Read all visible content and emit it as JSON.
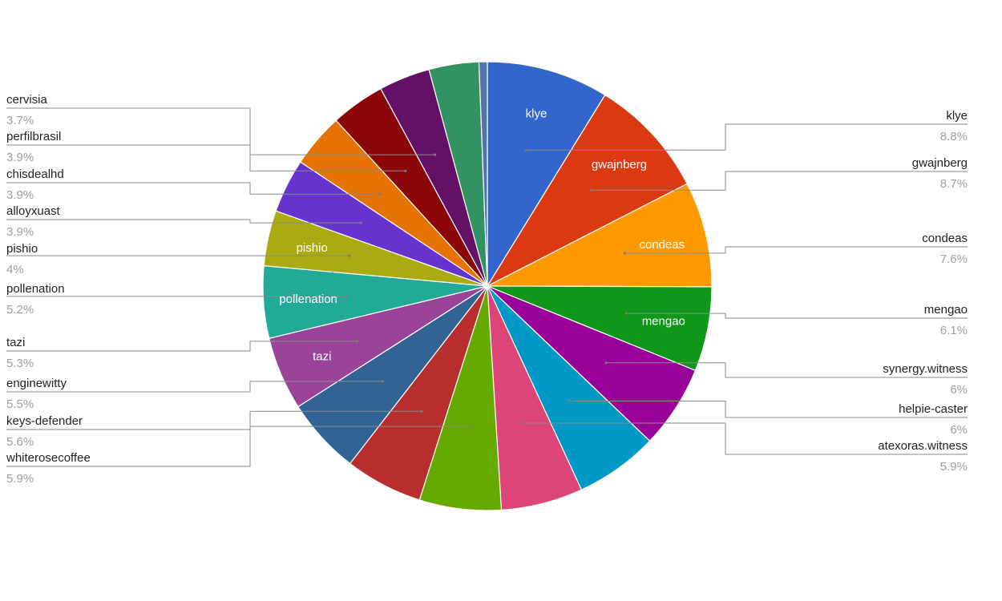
{
  "chart_data": {
    "type": "pie",
    "title": "",
    "start_angle_deg": 0,
    "direction": "clockwise",
    "slices": [
      {
        "label": "klye",
        "value": 8.8,
        "value_label": "8.8%",
        "color": "#3366cc",
        "callout": "right",
        "in_slice_label": true
      },
      {
        "label": "gwajnberg",
        "value": 8.7,
        "value_label": "8.7%",
        "color": "#dc3912",
        "callout": "right",
        "in_slice_label": true
      },
      {
        "label": "condeas",
        "value": 7.6,
        "value_label": "7.6%",
        "color": "#ff9900",
        "callout": "right",
        "in_slice_label": true
      },
      {
        "label": "mengao",
        "value": 6.1,
        "value_label": "6.1%",
        "color": "#109618",
        "callout": "right",
        "in_slice_label": true
      },
      {
        "label": "synergy.witness",
        "value": 6.0,
        "value_label": "6%",
        "color": "#990099",
        "callout": "right",
        "in_slice_label": false
      },
      {
        "label": "helpie-caster",
        "value": 6.0,
        "value_label": "6%",
        "color": "#0099c6",
        "callout": "right",
        "in_slice_label": false
      },
      {
        "label": "atexoras.witness",
        "value": 5.9,
        "value_label": "5.9%",
        "color": "#dd4477",
        "callout": "right",
        "in_slice_label": false
      },
      {
        "label": "whiterosecoffee",
        "value": 5.9,
        "value_label": "5.9%",
        "color": "#66aa00",
        "callout": "left",
        "in_slice_label": false
      },
      {
        "label": "keys-defender",
        "value": 5.6,
        "value_label": "5.6%",
        "color": "#b82e2e",
        "callout": "left",
        "in_slice_label": false
      },
      {
        "label": "enginewitty",
        "value": 5.5,
        "value_label": "5.5%",
        "color": "#316395",
        "callout": "left",
        "in_slice_label": false
      },
      {
        "label": "tazi",
        "value": 5.3,
        "value_label": "5.3%",
        "color": "#994499",
        "callout": "left",
        "in_slice_label": true
      },
      {
        "label": "pollenation",
        "value": 5.2,
        "value_label": "5.2%",
        "color": "#22aa99",
        "callout": "left",
        "in_slice_label": true
      },
      {
        "label": "pishio",
        "value": 4.0,
        "value_label": "4%",
        "color": "#aaaa11",
        "callout": "left",
        "in_slice_label": true
      },
      {
        "label": "alloyxuast",
        "value": 3.9,
        "value_label": "3.9%",
        "color": "#6633cc",
        "callout": "left",
        "in_slice_label": false
      },
      {
        "label": "chisdealhd",
        "value": 3.9,
        "value_label": "3.9%",
        "color": "#e67300",
        "callout": "left",
        "in_slice_label": false
      },
      {
        "label": "perfilbrasil",
        "value": 3.9,
        "value_label": "3.9%",
        "color": "#8b0707",
        "callout": "left",
        "in_slice_label": false
      },
      {
        "label": "cervisia",
        "value": 3.7,
        "value_label": "3.7%",
        "color": "#651067",
        "callout": "left",
        "in_slice_label": false
      },
      {
        "label": "",
        "value": 3.6,
        "value_label": "",
        "color": "#329262",
        "callout": "none",
        "in_slice_label": false
      },
      {
        "label": "",
        "value": 0.6,
        "value_label": "",
        "color": "#5574a6",
        "callout": "none",
        "in_slice_label": false
      }
    ]
  }
}
